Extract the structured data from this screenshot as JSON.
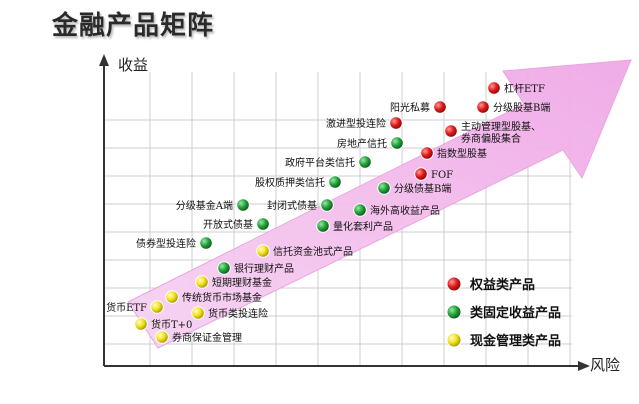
{
  "title": "金融产品矩阵",
  "axes": {
    "y_label": "收益",
    "x_label": "风险"
  },
  "colors": {
    "equity": "#e01b1b",
    "fixed_income": "#22a23a",
    "cash": "#f2e21a",
    "arrow": "#f2b8ea",
    "grid": "#c9c9c9"
  },
  "legend": [
    {
      "category": "equity",
      "label": "权益类产品"
    },
    {
      "category": "fixed_income",
      "label": "类固定收益产品"
    },
    {
      "category": "cash",
      "label": "现金管理类产品"
    }
  ],
  "products": [
    {
      "label": "杠杆ETF",
      "category": "equity"
    },
    {
      "label": "阳光私募",
      "category": "equity"
    },
    {
      "label": "分级股基B端",
      "category": "equity"
    },
    {
      "label": "激进型投连险",
      "category": "equity"
    },
    {
      "label": "主动管理型股基、",
      "label2": "券商偏股集合",
      "category": "equity"
    },
    {
      "label": "指数型股基",
      "category": "equity"
    },
    {
      "label": "FOF",
      "category": "equity"
    },
    {
      "label": "房地产信托",
      "category": "fixed_income"
    },
    {
      "label": "政府平台类信托",
      "category": "fixed_income"
    },
    {
      "label": "股权质押类信托",
      "category": "fixed_income"
    },
    {
      "label": "分级债基B端",
      "category": "fixed_income"
    },
    {
      "label": "分级基金A端",
      "category": "fixed_income"
    },
    {
      "label": "封闭式债基",
      "category": "fixed_income"
    },
    {
      "label": "海外高收益产品",
      "category": "fixed_income"
    },
    {
      "label": "开放式债基",
      "category": "fixed_income"
    },
    {
      "label": "量化套利产品",
      "category": "fixed_income"
    },
    {
      "label": "债券型投连险",
      "category": "fixed_income"
    },
    {
      "label": "银行理财产品",
      "category": "fixed_income"
    },
    {
      "label": "信托资金池式产品",
      "category": "cash"
    },
    {
      "label": "短期理财基金",
      "category": "cash"
    },
    {
      "label": "传统货币市场基金",
      "category": "cash"
    },
    {
      "label": "货币ETF",
      "category": "cash"
    },
    {
      "label": "货币类投连险",
      "category": "cash"
    },
    {
      "label": "货币T+0",
      "category": "cash"
    },
    {
      "label": "券商保证金管理",
      "category": "cash"
    }
  ]
}
